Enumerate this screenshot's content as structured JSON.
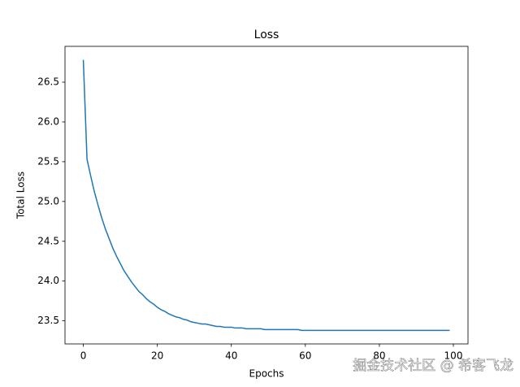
{
  "chart_data": {
    "type": "line",
    "title": "Loss",
    "x_label": "Epochs",
    "y_label": "Total Loss",
    "watermark": "掘金技术社区 @ 希客飞龙",
    "color": "#1f77b4",
    "x": [
      0,
      1,
      2,
      3,
      4,
      5,
      6,
      7,
      8,
      9,
      10,
      11,
      12,
      13,
      14,
      15,
      16,
      17,
      18,
      19,
      20,
      21,
      22,
      23,
      24,
      25,
      26,
      27,
      28,
      29,
      30,
      31,
      32,
      33,
      34,
      35,
      36,
      37,
      38,
      39,
      40,
      41,
      42,
      43,
      44,
      45,
      46,
      47,
      48,
      49,
      50,
      51,
      52,
      53,
      54,
      55,
      56,
      57,
      58,
      59,
      60,
      61,
      62,
      63,
      64,
      65,
      66,
      67,
      68,
      69,
      70,
      71,
      72,
      73,
      74,
      75,
      76,
      77,
      78,
      79,
      80,
      81,
      82,
      83,
      84,
      85,
      86,
      87,
      88,
      89,
      90,
      91,
      92,
      93,
      94,
      95,
      96,
      97,
      98,
      99
    ],
    "values": [
      26.78,
      25.53,
      25.32,
      25.12,
      24.95,
      24.79,
      24.65,
      24.53,
      24.41,
      24.31,
      24.22,
      24.13,
      24.06,
      23.99,
      23.93,
      23.87,
      23.83,
      23.78,
      23.74,
      23.71,
      23.67,
      23.64,
      23.62,
      23.59,
      23.57,
      23.55,
      23.54,
      23.52,
      23.51,
      23.49,
      23.48,
      23.47,
      23.46,
      23.46,
      23.45,
      23.44,
      23.43,
      23.43,
      23.42,
      23.42,
      23.42,
      23.41,
      23.41,
      23.41,
      23.4,
      23.4,
      23.4,
      23.4,
      23.4,
      23.39,
      23.39,
      23.39,
      23.39,
      23.39,
      23.39,
      23.39,
      23.39,
      23.39,
      23.39,
      23.38,
      23.38,
      23.38,
      23.38,
      23.38,
      23.38,
      23.38,
      23.38,
      23.38,
      23.38,
      23.38,
      23.38,
      23.38,
      23.38,
      23.38,
      23.38,
      23.38,
      23.38,
      23.38,
      23.38,
      23.38,
      23.38,
      23.38,
      23.38,
      23.38,
      23.38,
      23.38,
      23.38,
      23.38,
      23.38,
      23.38,
      23.38,
      23.38,
      23.38,
      23.38,
      23.38,
      23.38,
      23.38,
      23.38,
      23.38,
      23.38
    ],
    "xlim": [
      -4.95,
      103.95
    ],
    "xticks": [
      0,
      20,
      40,
      60,
      80,
      100
    ],
    "ylim": [
      23.21,
      26.95
    ],
    "yticks": [
      23.5,
      {
        "value": 24,
        "label": "24.0"
      },
      24.5,
      {
        "value": 25,
        "label": "25.0"
      },
      25.5,
      {
        "value": 26,
        "label": "26.0"
      },
      26.5
    ],
    "grid": false
  }
}
